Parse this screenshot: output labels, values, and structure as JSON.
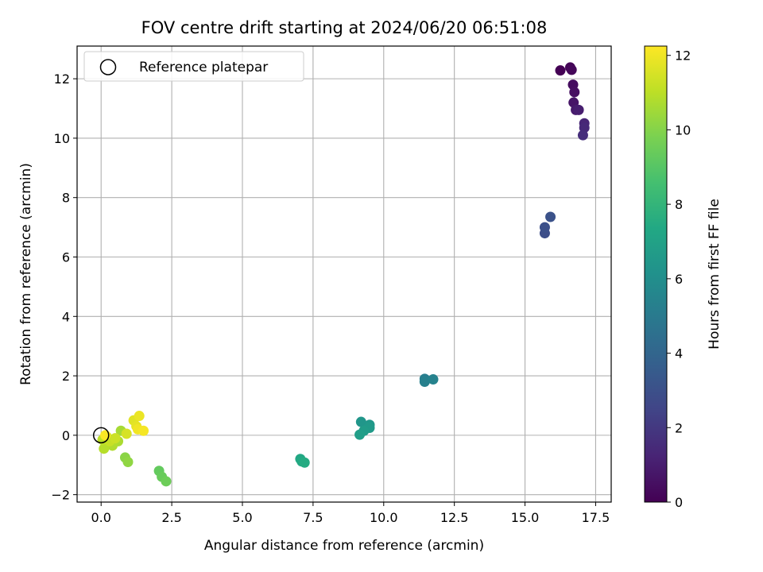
{
  "chart_data": {
    "type": "scatter",
    "title": "FOV centre drift starting at 2024/06/20 06:51:08",
    "xlabel": "Angular distance from reference (arcmin)",
    "ylabel": "Rotation from reference (arcmin)",
    "xlim": [
      -0.85,
      18.05
    ],
    "ylim": [
      -2.25,
      13.1
    ],
    "x_ticks": [
      {
        "value": 0.0,
        "label": "0.0"
      },
      {
        "value": 2.5,
        "label": "2.5"
      },
      {
        "value": 5.0,
        "label": "5.0"
      },
      {
        "value": 7.5,
        "label": "7.5"
      },
      {
        "value": 10.0,
        "label": "10.0"
      },
      {
        "value": 12.5,
        "label": "12.5"
      },
      {
        "value": 15.0,
        "label": "15.0"
      },
      {
        "value": 17.5,
        "label": "17.5"
      }
    ],
    "y_ticks": [
      {
        "value": -2,
        "label": "−2"
      },
      {
        "value": 0,
        "label": "0"
      },
      {
        "value": 2,
        "label": "2"
      },
      {
        "value": 4,
        "label": "4"
      },
      {
        "value": 6,
        "label": "6"
      },
      {
        "value": 8,
        "label": "8"
      },
      {
        "value": 10,
        "label": "10"
      },
      {
        "value": 12,
        "label": "12"
      }
    ],
    "grid": true,
    "legend": {
      "placement": "upper-left",
      "entries": [
        "Reference platepar"
      ]
    },
    "reference_point": {
      "x": 0.0,
      "y": 0.0
    },
    "colorbar": {
      "label": "Hours from first FF file",
      "colormap": "viridis",
      "range": [
        0,
        12.25
      ],
      "ticks": [
        {
          "value": 0,
          "label": "0"
        },
        {
          "value": 2,
          "label": "2"
        },
        {
          "value": 4,
          "label": "4"
        },
        {
          "value": 6,
          "label": "6"
        },
        {
          "value": 8,
          "label": "8"
        },
        {
          "value": 10,
          "label": "10"
        },
        {
          "value": 12,
          "label": "12"
        }
      ]
    },
    "points": [
      {
        "x": 16.25,
        "y": 12.28,
        "hours": 0.0
      },
      {
        "x": 16.6,
        "y": 12.38,
        "hours": 0.1
      },
      {
        "x": 16.65,
        "y": 12.3,
        "hours": 0.2
      },
      {
        "x": 16.7,
        "y": 11.8,
        "hours": 0.4
      },
      {
        "x": 16.75,
        "y": 11.55,
        "hours": 0.5
      },
      {
        "x": 16.72,
        "y": 11.2,
        "hours": 0.7
      },
      {
        "x": 16.8,
        "y": 10.95,
        "hours": 0.9
      },
      {
        "x": 16.9,
        "y": 10.95,
        "hours": 1.0
      },
      {
        "x": 17.1,
        "y": 10.5,
        "hours": 1.3
      },
      {
        "x": 17.1,
        "y": 10.35,
        "hours": 1.4
      },
      {
        "x": 17.05,
        "y": 10.1,
        "hours": 1.6
      },
      {
        "x": 15.7,
        "y": 6.8,
        "hours": 2.9
      },
      {
        "x": 15.7,
        "y": 7.0,
        "hours": 3.0
      },
      {
        "x": 15.9,
        "y": 7.35,
        "hours": 3.1
      },
      {
        "x": 11.45,
        "y": 1.9,
        "hours": 5.2
      },
      {
        "x": 11.45,
        "y": 1.8,
        "hours": 5.3
      },
      {
        "x": 11.75,
        "y": 1.88,
        "hours": 5.4
      },
      {
        "x": 9.2,
        "y": 0.45,
        "hours": 6.4
      },
      {
        "x": 9.5,
        "y": 0.35,
        "hours": 6.5
      },
      {
        "x": 9.5,
        "y": 0.25,
        "hours": 6.6
      },
      {
        "x": 9.3,
        "y": 0.15,
        "hours": 6.7
      },
      {
        "x": 9.15,
        "y": 0.02,
        "hours": 6.8
      },
      {
        "x": 7.05,
        "y": -0.8,
        "hours": 7.3
      },
      {
        "x": 7.1,
        "y": -0.88,
        "hours": 7.4
      },
      {
        "x": 7.2,
        "y": -0.92,
        "hours": 7.5
      },
      {
        "x": 2.05,
        "y": -1.2,
        "hours": 9.3
      },
      {
        "x": 2.15,
        "y": -1.4,
        "hours": 9.4
      },
      {
        "x": 2.3,
        "y": -1.55,
        "hours": 9.5
      },
      {
        "x": 0.85,
        "y": -0.75,
        "hours": 10.1
      },
      {
        "x": 0.95,
        "y": -0.9,
        "hours": 10.2
      },
      {
        "x": 0.7,
        "y": 0.15,
        "hours": 10.6
      },
      {
        "x": 0.6,
        "y": -0.2,
        "hours": 10.7
      },
      {
        "x": 0.4,
        "y": -0.35,
        "hours": 10.8
      },
      {
        "x": 0.1,
        "y": -0.45,
        "hours": 10.9
      },
      {
        "x": 0.05,
        "y": -0.15,
        "hours": 11.0
      },
      {
        "x": 0.2,
        "y": -0.05,
        "hours": 11.1
      },
      {
        "x": 0.3,
        "y": -0.2,
        "hours": 11.2
      },
      {
        "x": 0.5,
        "y": -0.1,
        "hours": 11.3
      },
      {
        "x": 0.9,
        "y": 0.05,
        "hours": 11.5
      },
      {
        "x": 1.15,
        "y": 0.5,
        "hours": 11.7
      },
      {
        "x": 1.25,
        "y": 0.3,
        "hours": 11.8
      },
      {
        "x": 1.35,
        "y": 0.65,
        "hours": 11.9
      },
      {
        "x": 1.3,
        "y": 0.2,
        "hours": 12.0
      },
      {
        "x": 1.5,
        "y": 0.15,
        "hours": 12.1
      },
      {
        "x": 0.15,
        "y": 0.0,
        "hours": 12.2
      }
    ]
  }
}
